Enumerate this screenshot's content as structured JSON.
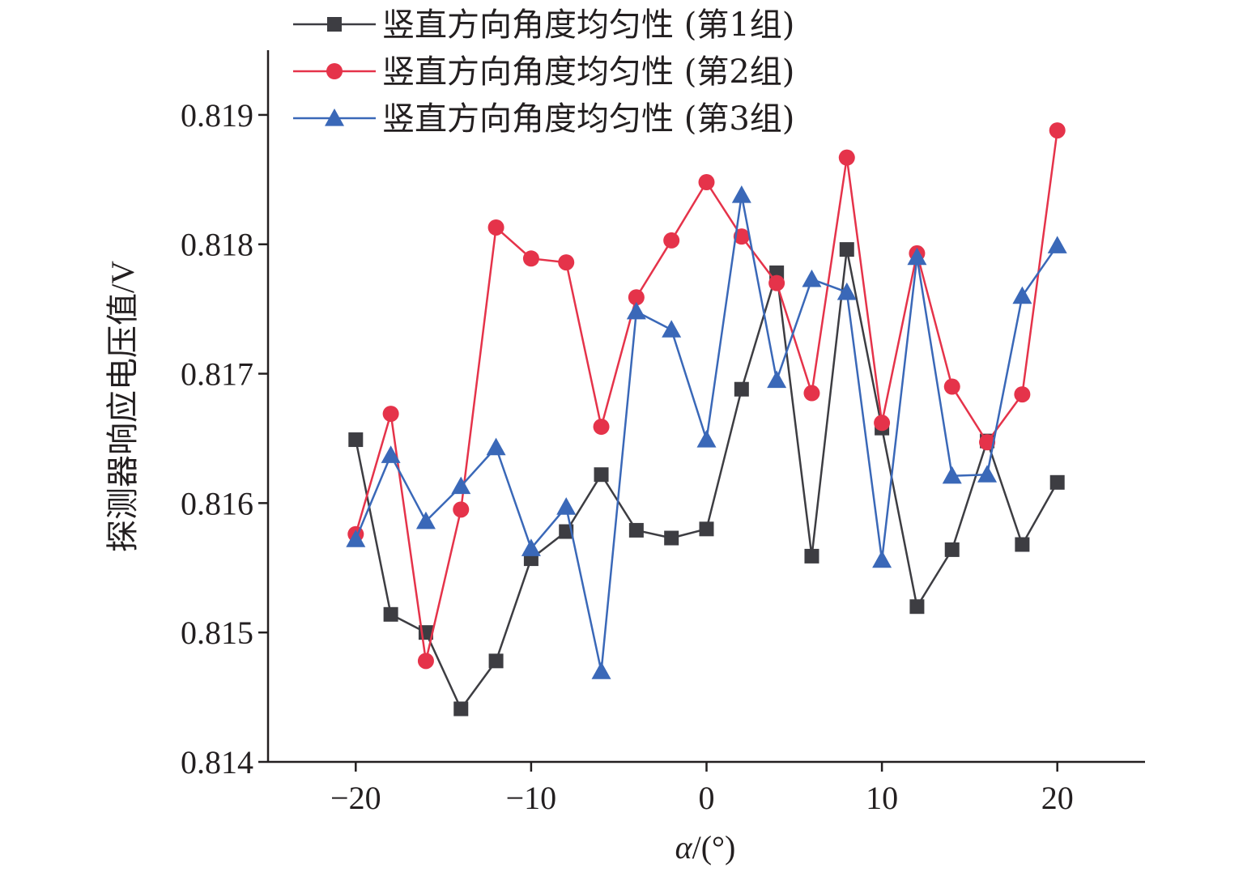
{
  "chart_data": {
    "type": "line",
    "xlabel_var": "α",
    "xlabel_unit": "/(°)",
    "ylabel": "探测器响应电压值/V",
    "xlim": [
      -25,
      25
    ],
    "ylim": [
      0.814,
      0.8195
    ],
    "xticks": [
      -20,
      -10,
      0,
      10,
      20
    ],
    "xtick_labels": [
      "−20",
      "−10",
      "0",
      "10",
      "20"
    ],
    "yticks": [
      0.814,
      0.815,
      0.816,
      0.817,
      0.818,
      0.819
    ],
    "ytick_labels": [
      "0.814",
      "0.815",
      "0.816",
      "0.817",
      "0.818",
      "0.819"
    ],
    "grid": false,
    "legend_position": "top-left",
    "x": [
      -20,
      -18,
      -16,
      -14,
      -12,
      -10,
      -8,
      -6,
      -4,
      -2,
      0,
      2,
      4,
      6,
      8,
      10,
      12,
      14,
      16,
      18,
      20
    ],
    "series": [
      {
        "name": "竖直方向角度均匀性 (第1组)",
        "color": "#3d3d42",
        "marker": "square",
        "values": [
          0.81649,
          0.81514,
          0.815,
          0.81441,
          0.81478,
          0.81557,
          0.81578,
          0.81622,
          0.81579,
          0.81573,
          0.8158,
          0.81688,
          0.81778,
          0.81559,
          0.81796,
          0.81658,
          0.8152,
          0.81564,
          0.81648,
          0.81568,
          0.81616
        ]
      },
      {
        "name": "竖直方向角度均匀性 (第2组)",
        "color": "#e5334a",
        "marker": "circle",
        "values": [
          0.81576,
          0.81669,
          0.81478,
          0.81595,
          0.81813,
          0.81789,
          0.81786,
          0.81659,
          0.81759,
          0.81803,
          0.81848,
          0.81806,
          0.8177,
          0.81685,
          0.81867,
          0.81662,
          0.81793,
          0.8169,
          0.81647,
          0.81684,
          0.81888
        ]
      },
      {
        "name": "竖直方向角度均匀性 (第3组)",
        "color": "#3a68b8",
        "marker": "triangle",
        "values": [
          0.81572,
          0.81637,
          0.81586,
          0.81613,
          0.81643,
          0.81565,
          0.81597,
          0.8147,
          0.81748,
          0.81734,
          0.81649,
          0.81838,
          0.81695,
          0.81773,
          0.81763,
          0.81556,
          0.8179,
          0.81621,
          0.81622,
          0.8176,
          0.81799
        ]
      }
    ]
  }
}
